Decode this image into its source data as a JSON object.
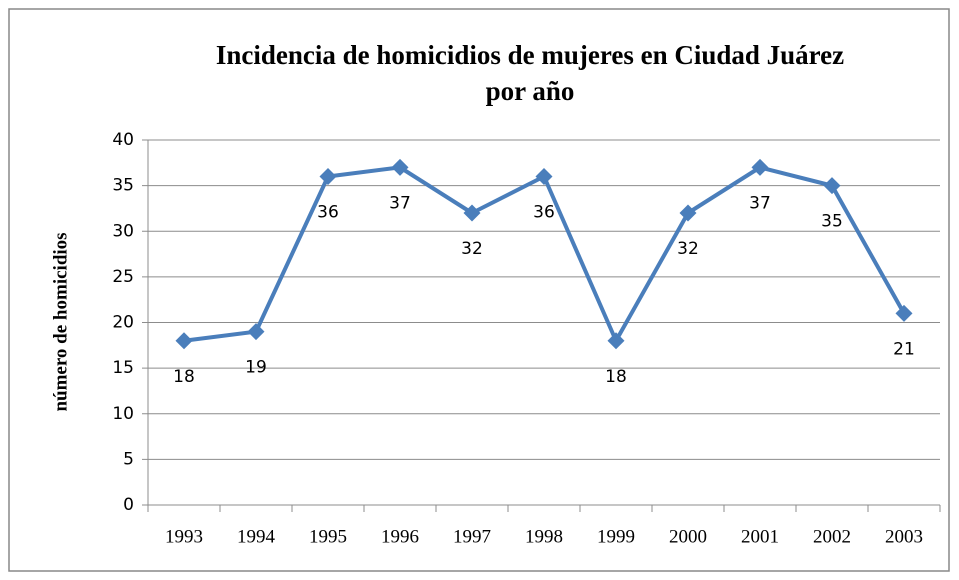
{
  "chart_data": {
    "type": "line",
    "title": [
      "Incidencia de homicidios de mujeres en Ciudad Juárez",
      "por año"
    ],
    "y_label": "número de homicidios",
    "categories": [
      "1993",
      "1994",
      "1995",
      "1996",
      "1997",
      "1998",
      "1999",
      "2000",
      "2001",
      "2002",
      "2003"
    ],
    "values": [
      18,
      19,
      36,
      37,
      32,
      36,
      18,
      32,
      37,
      35,
      21
    ],
    "color": "#4a7ebb",
    "ylim": [
      0,
      40
    ],
    "yticks": [
      0,
      5,
      10,
      15,
      20,
      25,
      30,
      35,
      40
    ],
    "grid": true
  }
}
